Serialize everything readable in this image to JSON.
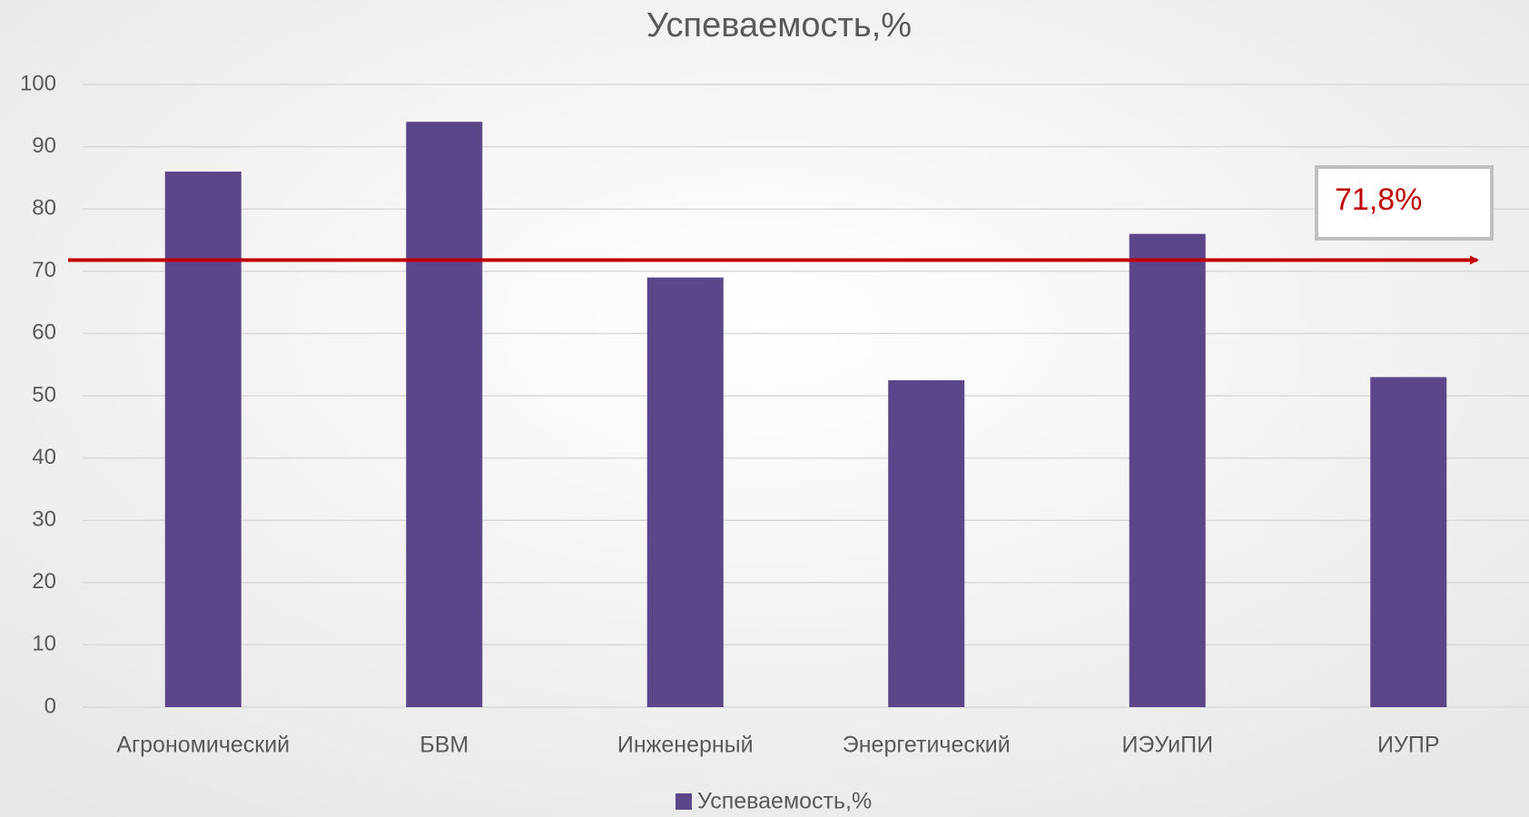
{
  "chart_data": {
    "type": "bar",
    "title": "Успеваемость,%",
    "categories": [
      "Агрономический",
      "БВМ",
      "Инженерный",
      "Энергетический",
      "ИЭУиПИ",
      "ИУПР"
    ],
    "series": [
      {
        "name": "Успеваемость,%",
        "color": "#5c468a",
        "values": [
          86,
          94,
          69,
          52.5,
          76,
          53
        ]
      }
    ],
    "ylim": [
      0,
      100
    ],
    "yticks": [
      0,
      10,
      20,
      30,
      40,
      50,
      60,
      70,
      80,
      90,
      100
    ],
    "grid": true,
    "legend": "bottom",
    "reference_line": {
      "value": 71.8,
      "label": "71,8%",
      "color": "#c00000"
    }
  }
}
